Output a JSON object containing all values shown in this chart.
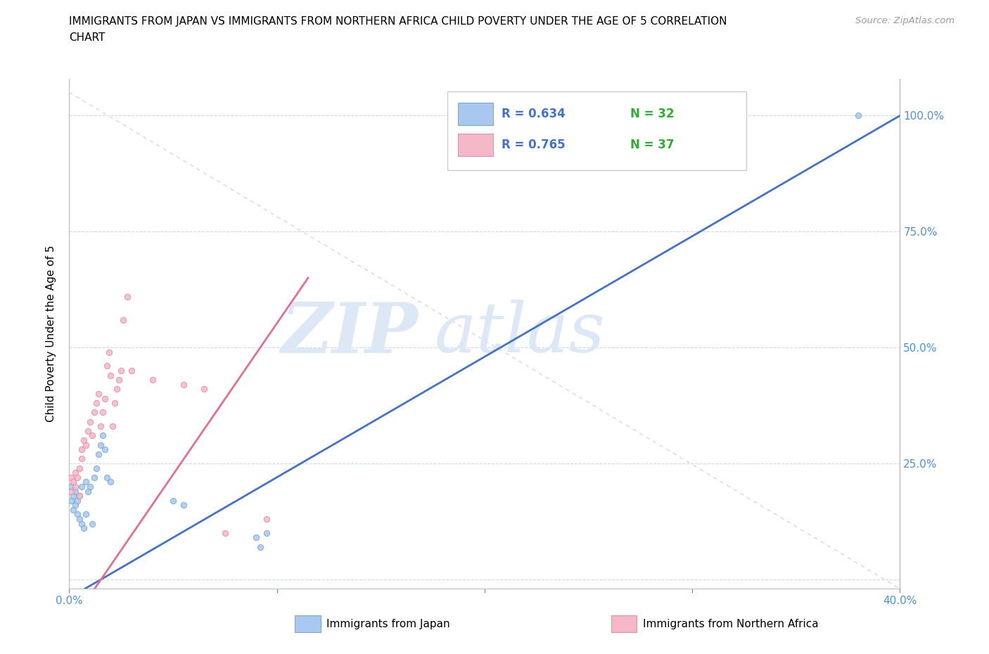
{
  "title_line1": "IMMIGRANTS FROM JAPAN VS IMMIGRANTS FROM NORTHERN AFRICA CHILD POVERTY UNDER THE AGE OF 5 CORRELATION",
  "title_line2": "CHART",
  "source": "Source: ZipAtlas.com",
  "ylabel": "Child Poverty Under the Age of 5",
  "xmin": 0.0,
  "xmax": 0.4,
  "ymin": -0.02,
  "ymax": 1.08,
  "japan_color": "#a8c8f0",
  "japan_edge_color": "#7aaad0",
  "africa_color": "#f5b8c8",
  "africa_edge_color": "#e090a8",
  "japan_R": 0.634,
  "japan_N": 32,
  "africa_R": 0.765,
  "africa_N": 37,
  "japan_line_color": "#4472c4",
  "africa_line_color": "#e07090",
  "ref_line_color": "#c8c8c8",
  "legend_R_color": "#4472c4",
  "legend_N_color": "#33aa33",
  "background_color": "#ffffff",
  "grid_color": "#d0d8e8",
  "right_axis_color": "#5090d0",
  "watermark_color": "#dce8f5",
  "japan_x": [
    0.001,
    0.001,
    0.002,
    0.002,
    0.003,
    0.003,
    0.004,
    0.004,
    0.005,
    0.005,
    0.006,
    0.006,
    0.007,
    0.008,
    0.008,
    0.009,
    0.01,
    0.011,
    0.012,
    0.013,
    0.014,
    0.015,
    0.016,
    0.017,
    0.018,
    0.02,
    0.05,
    0.055,
    0.09,
    0.092,
    0.095,
    0.38
  ],
  "japan_y": [
    0.2,
    0.17,
    0.18,
    0.15,
    0.19,
    0.16,
    0.17,
    0.14,
    0.13,
    0.18,
    0.12,
    0.2,
    0.11,
    0.14,
    0.21,
    0.19,
    0.2,
    0.12,
    0.22,
    0.24,
    0.27,
    0.29,
    0.31,
    0.28,
    0.22,
    0.21,
    0.17,
    0.16,
    0.09,
    0.07,
    0.1,
    1.0
  ],
  "africa_x": [
    0.001,
    0.001,
    0.002,
    0.003,
    0.003,
    0.004,
    0.005,
    0.005,
    0.006,
    0.006,
    0.007,
    0.008,
    0.009,
    0.01,
    0.011,
    0.012,
    0.013,
    0.014,
    0.015,
    0.016,
    0.017,
    0.018,
    0.019,
    0.02,
    0.021,
    0.022,
    0.023,
    0.024,
    0.025,
    0.026,
    0.028,
    0.03,
    0.04,
    0.055,
    0.065,
    0.075,
    0.095
  ],
  "africa_y": [
    0.19,
    0.22,
    0.21,
    0.2,
    0.23,
    0.22,
    0.18,
    0.24,
    0.26,
    0.28,
    0.3,
    0.29,
    0.32,
    0.34,
    0.31,
    0.36,
    0.38,
    0.4,
    0.33,
    0.36,
    0.39,
    0.46,
    0.49,
    0.44,
    0.33,
    0.38,
    0.41,
    0.43,
    0.45,
    0.56,
    0.61,
    0.45,
    0.43,
    0.42,
    0.41,
    0.1,
    0.13
  ],
  "japan_size": 35,
  "africa_size": 35
}
